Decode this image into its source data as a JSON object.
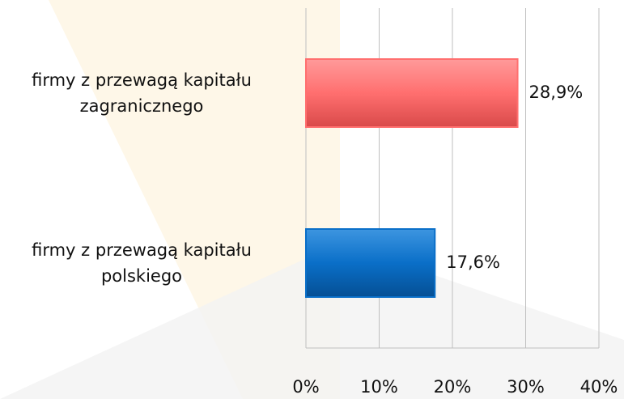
{
  "chart_data": {
    "type": "bar",
    "orientation": "horizontal",
    "categories": [
      "firmy z przewagą kapitału zagranicznego",
      "firmy z przewagą kapitału polskiego"
    ],
    "values": [
      28.9,
      17.6
    ],
    "value_labels": [
      "28,9%",
      "17,6%"
    ],
    "colors": [
      "#ff6f6f",
      "#0a6fc8"
    ],
    "xlim": [
      0,
      40
    ],
    "xticks": [
      {
        "value": 0,
        "label": "0%"
      },
      {
        "value": 10,
        "label": "10%"
      },
      {
        "value": 20,
        "label": "20%"
      },
      {
        "value": 30,
        "label": "30%"
      },
      {
        "value": 40,
        "label": "40%"
      }
    ],
    "grid": true
  }
}
